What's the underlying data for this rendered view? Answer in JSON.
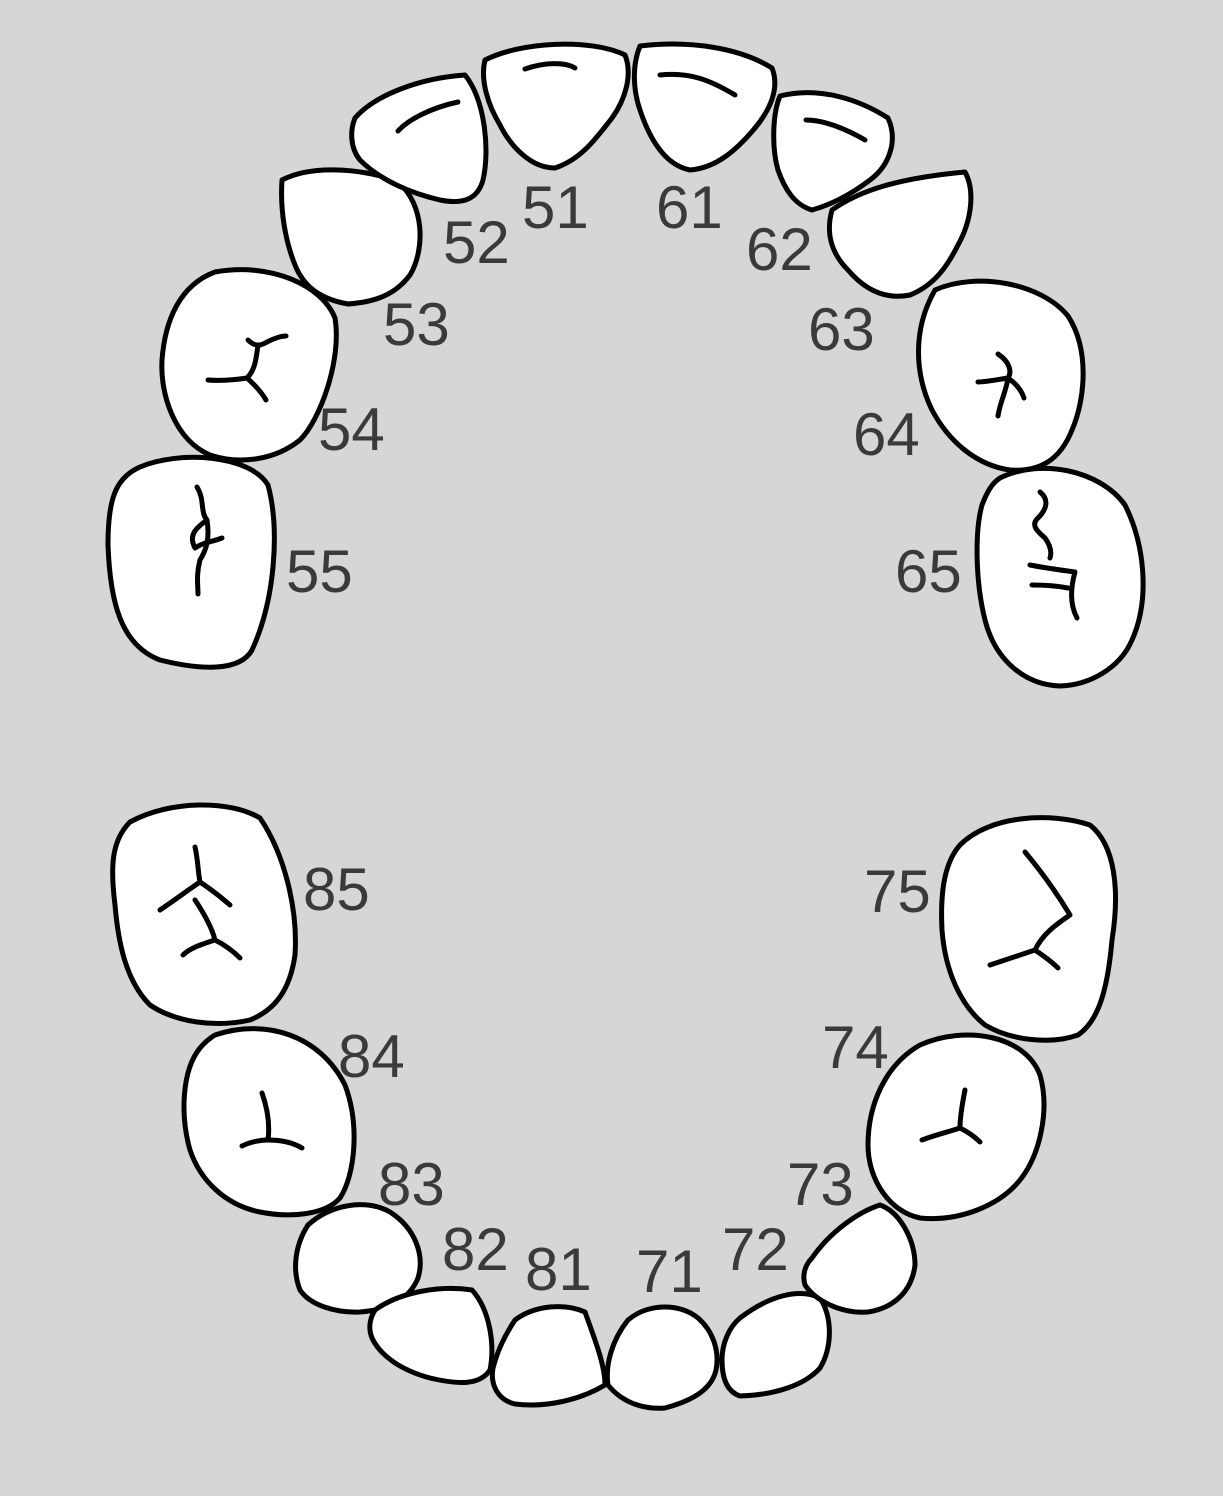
{
  "background": "#d6d6d6",
  "tooth_fill": "#ffffff",
  "outline_color": "#000000",
  "label_color": "#3a3a3a",
  "upper_arch": {
    "teeth": [
      {
        "id": "55",
        "type": "molar"
      },
      {
        "id": "54",
        "type": "molar"
      },
      {
        "id": "53",
        "type": "canine"
      },
      {
        "id": "52",
        "type": "incisor"
      },
      {
        "id": "51",
        "type": "incisor"
      },
      {
        "id": "61",
        "type": "incisor"
      },
      {
        "id": "62",
        "type": "incisor"
      },
      {
        "id": "63",
        "type": "canine"
      },
      {
        "id": "64",
        "type": "molar"
      },
      {
        "id": "65",
        "type": "molar"
      }
    ]
  },
  "lower_arch": {
    "teeth": [
      {
        "id": "85",
        "type": "molar"
      },
      {
        "id": "84",
        "type": "molar"
      },
      {
        "id": "83",
        "type": "canine"
      },
      {
        "id": "82",
        "type": "incisor"
      },
      {
        "id": "81",
        "type": "incisor"
      },
      {
        "id": "71",
        "type": "incisor"
      },
      {
        "id": "72",
        "type": "incisor"
      },
      {
        "id": "73",
        "type": "canine"
      },
      {
        "id": "74",
        "type": "molar"
      },
      {
        "id": "75",
        "type": "molar"
      }
    ]
  }
}
